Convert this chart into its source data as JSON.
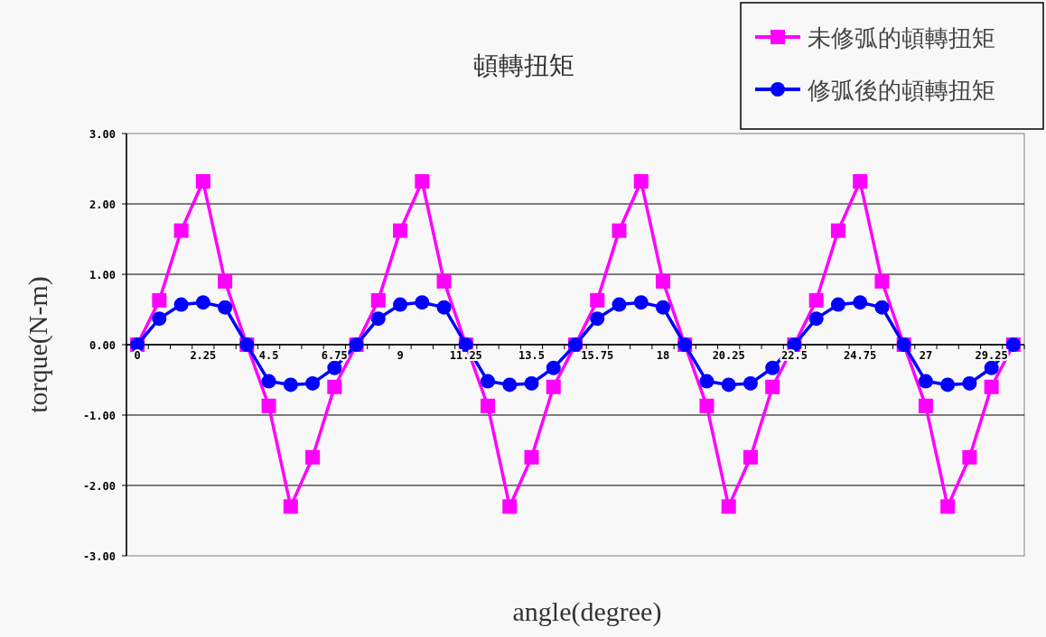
{
  "chart_data": {
    "type": "line",
    "title": "頓轉扭矩",
    "xlabel": "angle(degree)",
    "ylabel": "torque(N-m)",
    "categories": [
      "0",
      null,
      null,
      "2.25",
      null,
      null,
      "4.5",
      null,
      null,
      "6.75",
      null,
      null,
      "9",
      null,
      null,
      "11.25",
      null,
      null,
      "13.5",
      null,
      null,
      "15.75",
      null,
      null,
      "18",
      null,
      null,
      "20.25",
      null,
      null,
      "22.5",
      null,
      null,
      "24.75",
      null,
      null,
      "27",
      null,
      null,
      "29.25",
      null
    ],
    "series": [
      {
        "name": "未修弧的頓轉扭矩",
        "color": "#ff00ff",
        "marker": "square",
        "values": [
          0,
          0.63,
          1.62,
          2.32,
          0.9,
          0,
          -0.87,
          -2.3,
          -1.6,
          -0.6,
          0,
          0.63,
          1.62,
          2.32,
          0.9,
          0,
          -0.87,
          -2.3,
          -1.6,
          -0.6,
          0,
          0.63,
          1.62,
          2.32,
          0.9,
          0,
          -0.87,
          -2.3,
          -1.6,
          -0.6,
          0,
          0.63,
          1.62,
          2.32,
          0.9,
          0,
          -0.87,
          -2.3,
          -1.6,
          -0.6,
          0
        ]
      },
      {
        "name": "修弧後的頓轉扭矩",
        "color": "#0000ff",
        "marker": "circle",
        "values": [
          0,
          0.37,
          0.57,
          0.6,
          0.53,
          0,
          -0.52,
          -0.57,
          -0.55,
          -0.33,
          0,
          0.37,
          0.57,
          0.6,
          0.53,
          0,
          -0.52,
          -0.57,
          -0.55,
          -0.33,
          0,
          0.37,
          0.57,
          0.6,
          0.53,
          0,
          -0.52,
          -0.57,
          -0.55,
          -0.33,
          0,
          0.37,
          0.57,
          0.6,
          0.53,
          0,
          -0.52,
          -0.57,
          -0.55,
          -0.33,
          0
        ]
      }
    ],
    "ylim": [
      -3,
      3
    ],
    "yticks": [
      {
        "value": -3,
        "label": "-3.00"
      },
      {
        "value": -2,
        "label": "-2.00"
      },
      {
        "value": -1,
        "label": "-1.00"
      },
      {
        "value": 0,
        "label": "0.00"
      },
      {
        "value": 1,
        "label": "1.00"
      },
      {
        "value": 2,
        "label": "2.00"
      },
      {
        "value": 3,
        "label": "3.00"
      }
    ],
    "grid": "y",
    "legend": "top right",
    "line_style": "solid"
  }
}
